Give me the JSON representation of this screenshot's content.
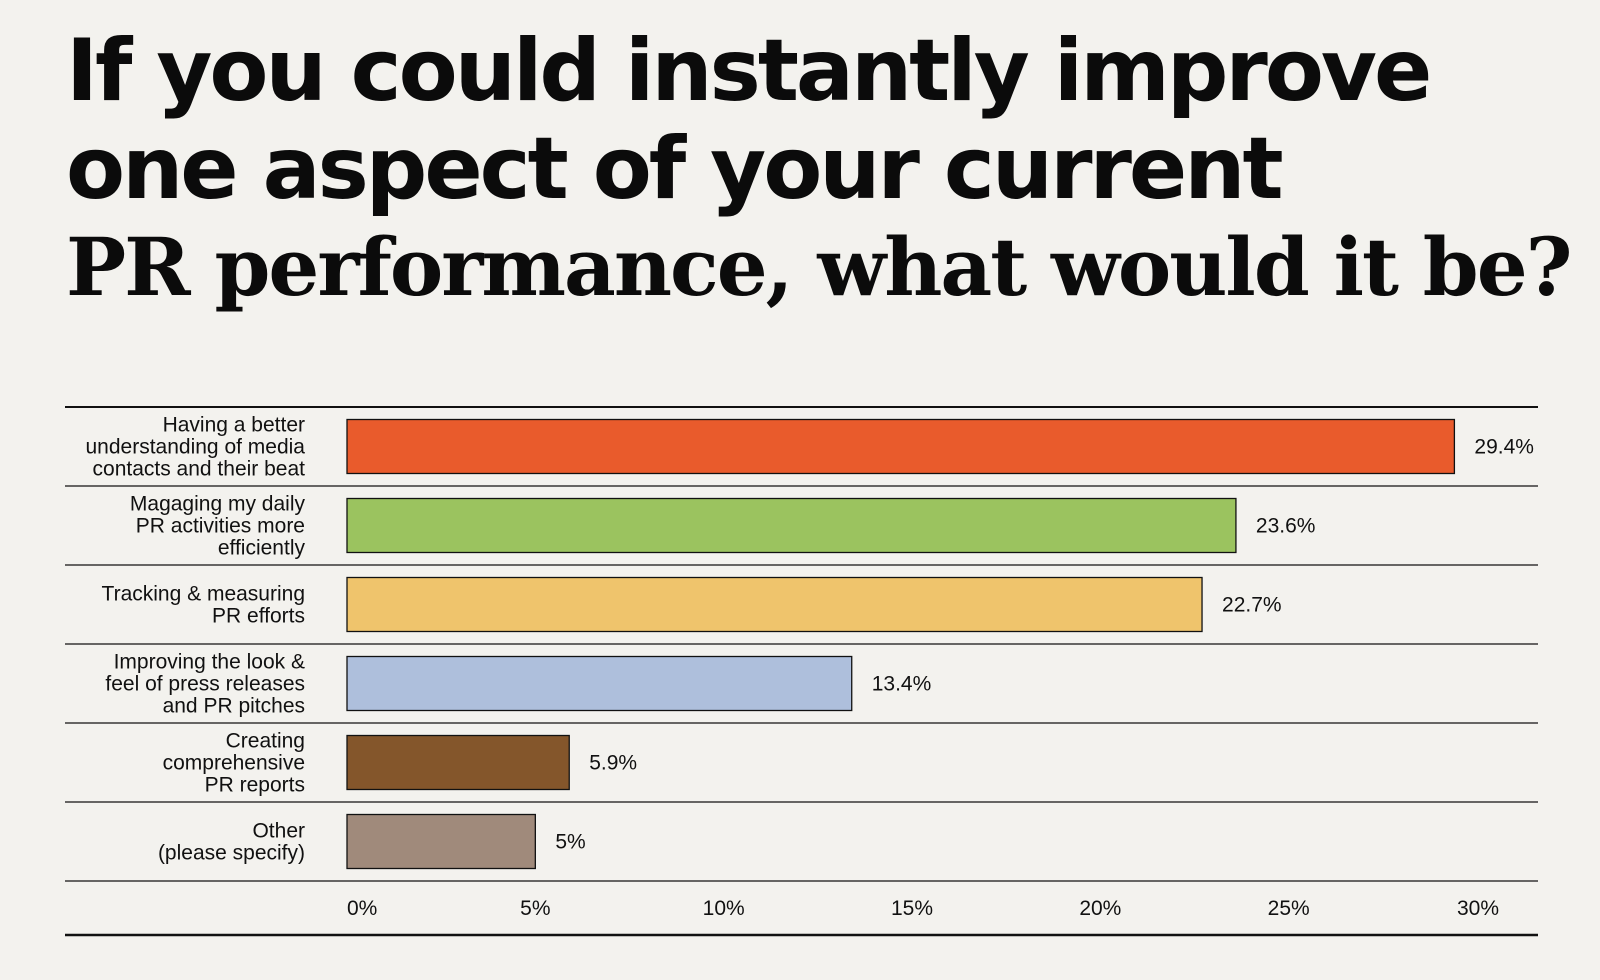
{
  "title": {
    "line1": "If you could instantly improve",
    "line2": "one aspect of your current",
    "line3": "PR performance, what would it be?"
  },
  "chart_data": {
    "type": "bar",
    "orientation": "horizontal",
    "categories": [
      [
        "Having a better",
        "understanding of media",
        "contacts and their beat"
      ],
      [
        "Magaging my daily",
        "PR activities more",
        "efficiently"
      ],
      [
        "Tracking & measuring",
        "PR efforts"
      ],
      [
        "Improving the look &",
        "feel of press releases",
        "and PR pitches"
      ],
      [
        "Creating",
        "comprehensive",
        "PR reports"
      ],
      [
        "Other",
        "(please specify)"
      ]
    ],
    "values": [
      29.4,
      23.6,
      22.7,
      13.4,
      5.9,
      5
    ],
    "value_labels": [
      "29.4%",
      "23.6%",
      "22.7%",
      "13.4%",
      "5.9%",
      "5%"
    ],
    "colors": [
      "#e95b2c",
      "#9bc35f",
      "#efc46c",
      "#aebfdc",
      "#84562b",
      "#a08a7b"
    ],
    "xlim": [
      0,
      30
    ],
    "xticks": [
      0,
      5,
      10,
      15,
      20,
      25,
      30
    ],
    "xtick_labels": [
      "0%",
      "5%",
      "10%",
      "15%",
      "20%",
      "25%",
      "30%"
    ],
    "grid": false
  }
}
